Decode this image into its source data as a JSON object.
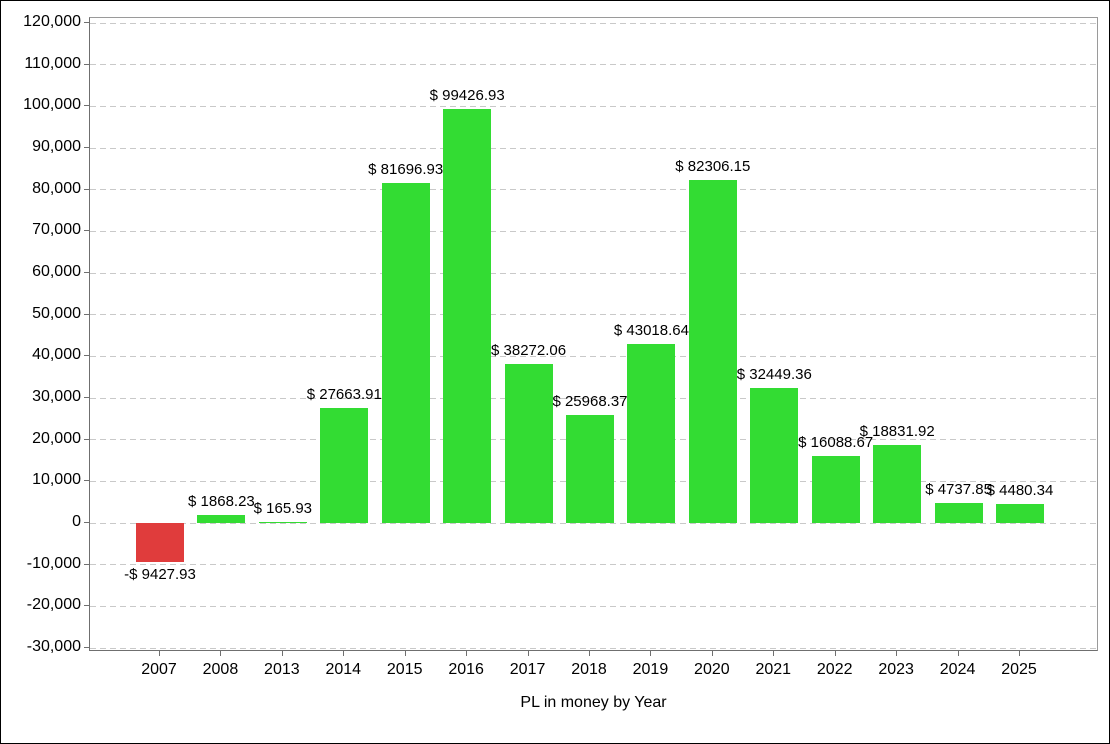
{
  "chart_data": {
    "type": "bar",
    "title": "",
    "xlabel": "PL in money by Year",
    "ylabel": "",
    "categories": [
      "2007",
      "2008",
      "2013",
      "2014",
      "2015",
      "2016",
      "2017",
      "2018",
      "2019",
      "2020",
      "2021",
      "2022",
      "2023",
      "2024",
      "2025"
    ],
    "values": [
      -9427.93,
      1868.23,
      165.93,
      27663.91,
      81696.93,
      99426.93,
      38272.06,
      25968.37,
      43018.64,
      82306.15,
      32449.36,
      16088.67,
      18831.92,
      4737.85,
      4480.34
    ],
    "value_labels": [
      "-$ 9427.93",
      "$ 1868.23",
      "$ 165.93",
      "$ 27663.91",
      "$ 81696.93",
      "$ 99426.93",
      "$ 38272.06",
      "$ 25968.37",
      "$ 43018.64",
      "$ 82306.15",
      "$ 32449.36",
      "$ 16088.67",
      "$ 18831.92",
      "$ 4737.85",
      "$ 4480.34"
    ],
    "ylim": [
      -30000,
      120000
    ],
    "ytick_step": 10000,
    "ytick_labels": [
      "120,000",
      "110,000",
      "100,000",
      "90,000",
      "80,000",
      "70,000",
      "60,000",
      "50,000",
      "40,000",
      "30,000",
      "20,000",
      "10,000",
      "0",
      "-10,000",
      "-20,000",
      "-30,000"
    ],
    "grid": "horizontal-dashed",
    "legend_position": "none",
    "colors": {
      "positive_bar": "#33dc33",
      "negative_bar": "#e03c3c",
      "gridline": "#c9c9c9",
      "axis": "#6f6f6f",
      "text": "#000000",
      "background": "#ffffff"
    }
  }
}
